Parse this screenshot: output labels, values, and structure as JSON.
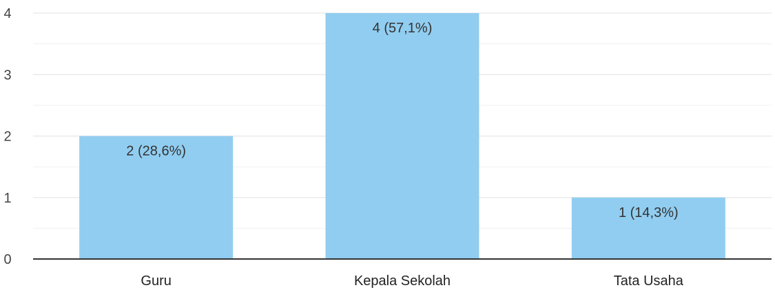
{
  "chart_data": {
    "type": "bar",
    "categories": [
      "Guru",
      "Kepala Sekolah",
      "Tata Usaha"
    ],
    "values": [
      2,
      4,
      1
    ],
    "data_labels": [
      "2 (28,6%)",
      "4 (57,1%)",
      "1 (14,3%)"
    ],
    "y_ticks": [
      "0",
      "1",
      "2",
      "3",
      "4"
    ],
    "ylim": [
      0,
      4
    ],
    "grid": true,
    "legend": "none",
    "bar_color": "#91cdf0",
    "grid_color": "#e6e6e6",
    "axis_color": "#333333"
  }
}
